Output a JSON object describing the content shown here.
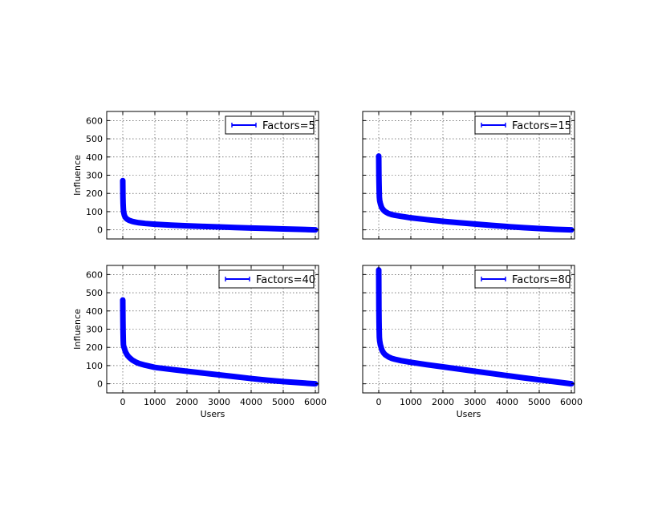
{
  "chart_data": [
    {
      "type": "line",
      "legend": "Factors=5",
      "legend_position": "top-right",
      "ylabel": "Influence",
      "xlabel": "",
      "xlim": [
        -500,
        6100
      ],
      "ylim": [
        -50,
        650
      ],
      "xticks": [
        0,
        1000,
        2000,
        3000,
        4000,
        5000,
        6000
      ],
      "yticks": [
        0,
        100,
        200,
        300,
        400,
        500,
        600
      ],
      "show_xtick_labels": false,
      "show_ytick_labels": true,
      "grid": true,
      "color": "#0000ff",
      "x": [
        0,
        5,
        10,
        15,
        20,
        30,
        50,
        75,
        100,
        150,
        200,
        300,
        400,
        500,
        700,
        1000,
        1500,
        2000,
        2500,
        3000,
        3500,
        4000,
        4500,
        5000,
        5500,
        6000
      ],
      "y": [
        270,
        180,
        145,
        125,
        110,
        95,
        80,
        70,
        64,
        57,
        52,
        46,
        42,
        39,
        35,
        31,
        26,
        22,
        19,
        16,
        13,
        10,
        8,
        5,
        3,
        0
      ]
    },
    {
      "type": "line",
      "legend": "Factors=15",
      "legend_position": "top-right",
      "ylabel": "",
      "xlabel": "",
      "xlim": [
        -500,
        6100
      ],
      "ylim": [
        -50,
        650
      ],
      "xticks": [
        0,
        1000,
        2000,
        3000,
        4000,
        5000,
        6000
      ],
      "yticks": [
        0,
        100,
        200,
        300,
        400,
        500,
        600
      ],
      "show_xtick_labels": false,
      "show_ytick_labels": false,
      "grid": true,
      "color": "#0000ff",
      "x": [
        0,
        5,
        10,
        15,
        20,
        30,
        50,
        75,
        100,
        150,
        200,
        300,
        400,
        500,
        700,
        1000,
        1500,
        2000,
        2500,
        3000,
        3500,
        4000,
        4500,
        5000,
        5500,
        6000
      ],
      "y": [
        405,
        300,
        250,
        210,
        180,
        160,
        145,
        130,
        120,
        108,
        100,
        90,
        84,
        80,
        74,
        66,
        56,
        47,
        39,
        32,
        25,
        18,
        12,
        7,
        3,
        0
      ]
    },
    {
      "type": "line",
      "legend": "Factors=40",
      "legend_position": "top-right",
      "ylabel": "Influence",
      "xlabel": "Users",
      "xlim": [
        -500,
        6100
      ],
      "ylim": [
        -50,
        650
      ],
      "xticks": [
        0,
        1000,
        2000,
        3000,
        4000,
        5000,
        6000
      ],
      "yticks": [
        0,
        100,
        200,
        300,
        400,
        500,
        600
      ],
      "show_xtick_labels": true,
      "show_ytick_labels": true,
      "grid": true,
      "color": "#0000ff",
      "x": [
        0,
        5,
        10,
        15,
        20,
        30,
        50,
        75,
        100,
        150,
        200,
        300,
        400,
        500,
        700,
        1000,
        1500,
        2000,
        2500,
        3000,
        3500,
        4000,
        4500,
        5000,
        5500,
        6000
      ],
      "y": [
        460,
        345,
        280,
        240,
        215,
        205,
        195,
        180,
        170,
        155,
        145,
        130,
        120,
        112,
        102,
        90,
        79,
        69,
        59,
        49,
        39,
        29,
        20,
        12,
        6,
        0
      ]
    },
    {
      "type": "line",
      "legend": "Factors=80",
      "legend_position": "top-right",
      "ylabel": "",
      "xlabel": "Users",
      "xlim": [
        -500,
        6100
      ],
      "ylim": [
        -50,
        650
      ],
      "xticks": [
        0,
        1000,
        2000,
        3000,
        4000,
        5000,
        6000
      ],
      "yticks": [
        0,
        100,
        200,
        300,
        400,
        500,
        600
      ],
      "show_xtick_labels": true,
      "show_ytick_labels": false,
      "grid": true,
      "color": "#0000ff",
      "x": [
        0,
        5,
        10,
        15,
        20,
        30,
        50,
        75,
        100,
        150,
        200,
        300,
        400,
        500,
        700,
        1000,
        1500,
        2000,
        2500,
        3000,
        3500,
        4000,
        4500,
        5000,
        5500,
        6000
      ],
      "y": [
        625,
        420,
        340,
        290,
        255,
        235,
        215,
        200,
        185,
        170,
        160,
        148,
        140,
        135,
        127,
        118,
        105,
        93,
        81,
        69,
        57,
        45,
        33,
        22,
        11,
        0
      ]
    }
  ]
}
